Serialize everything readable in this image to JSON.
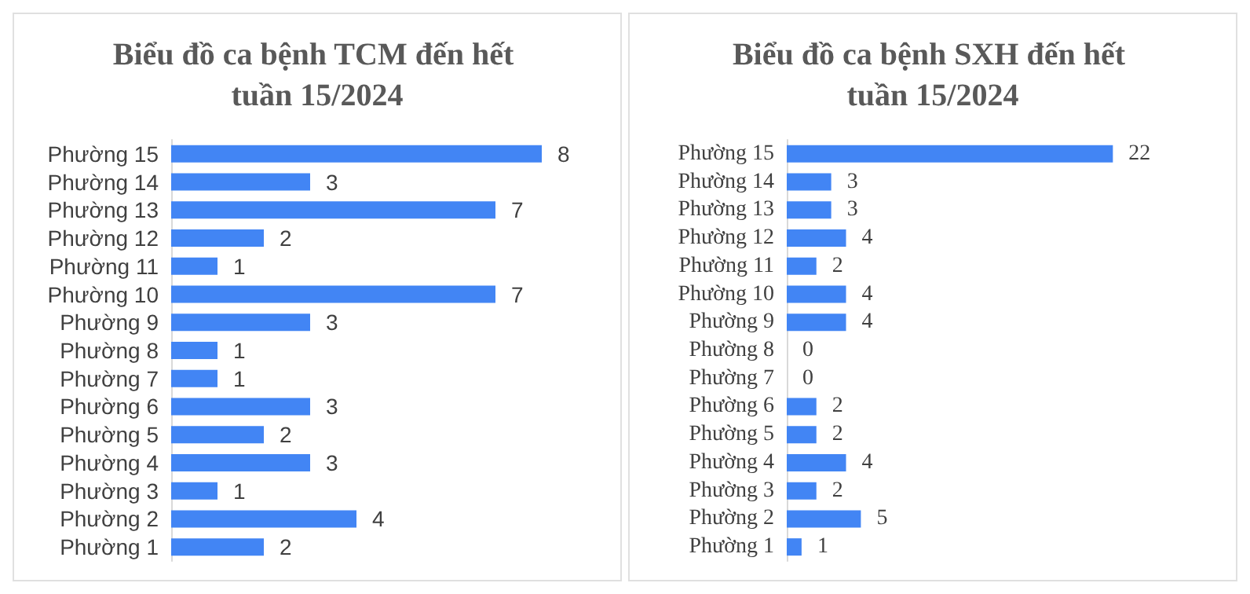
{
  "chart_data": [
    {
      "type": "bar",
      "orientation": "horizontal",
      "title": "Biểu đồ ca bệnh TCM đến hết tuần 15/2024",
      "categories": [
        "Phường 15",
        "Phường 14",
        "Phường 13",
        "Phường 12",
        "Phường 11",
        "Phường 10",
        "Phường 9",
        "Phường 8",
        "Phường 7",
        "Phường 6",
        "Phường 5",
        "Phường 4",
        "Phường 3",
        "Phường 2",
        "Phường 1"
      ],
      "values": [
        8,
        3,
        7,
        2,
        1,
        7,
        3,
        1,
        1,
        3,
        2,
        3,
        1,
        4,
        2
      ],
      "color": "#4285f4",
      "data_labels": true
    },
    {
      "type": "bar",
      "orientation": "horizontal",
      "title": "Biểu đồ ca bệnh SXH đến hết tuần 15/2024",
      "categories": [
        "Phường 15",
        "Phường 14",
        "Phường 13",
        "Phường 12",
        "Phường 11",
        "Phường 10",
        "Phường 9",
        "Phường 8",
        "Phường 7",
        "Phường 6",
        "Phường 5",
        "Phường 4",
        "Phường 3",
        "Phường 2",
        "Phường 1"
      ],
      "values": [
        22,
        3,
        3,
        4,
        2,
        4,
        4,
        0,
        0,
        2,
        2,
        4,
        2,
        5,
        1
      ],
      "color": "#4285f4",
      "data_labels": true
    }
  ]
}
